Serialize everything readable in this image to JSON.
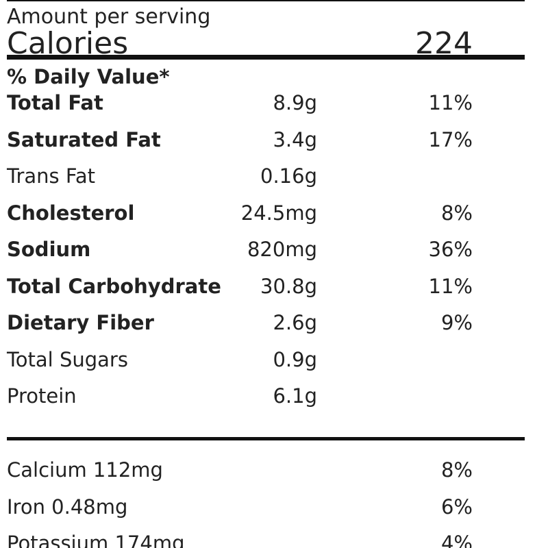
{
  "header": {
    "title": "Amount per serving",
    "calories_label": "Calories",
    "calories_value": "224",
    "daily_value_label": "% Daily Value*"
  },
  "nutrients": [
    {
      "name": "Total Fat",
      "amount": "8.9g",
      "dv": "11%",
      "bold": true
    },
    {
      "name": "Saturated Fat",
      "amount": "3.4g",
      "dv": "17%",
      "bold": true
    },
    {
      "name": "Trans Fat",
      "amount": "0.16g",
      "bold": false
    },
    {
      "name": "Cholesterol",
      "amount": "24.5mg",
      "dv": "8%",
      "bold": true
    },
    {
      "name": "Sodium",
      "amount": "820mg",
      "dv": "36%",
      "bold": true
    },
    {
      "name": "Total Carbohydrate",
      "amount": "30.8g",
      "dv": "11%",
      "bold": true
    },
    {
      "name": "Dietary Fiber",
      "amount": "2.6g",
      "dv": "9%",
      "bold": true
    },
    {
      "name": "Total Sugars",
      "amount": "0.9g",
      "bold": false
    },
    {
      "name": "Protein",
      "amount": "6.1g",
      "bold": false
    }
  ],
  "minerals": [
    {
      "name": "Calcium 112mg",
      "dv": "8%"
    },
    {
      "name": "Iron 0.48mg",
      "dv": "6%"
    },
    {
      "name": "Potassium 174mg",
      "dv": "4%"
    }
  ]
}
